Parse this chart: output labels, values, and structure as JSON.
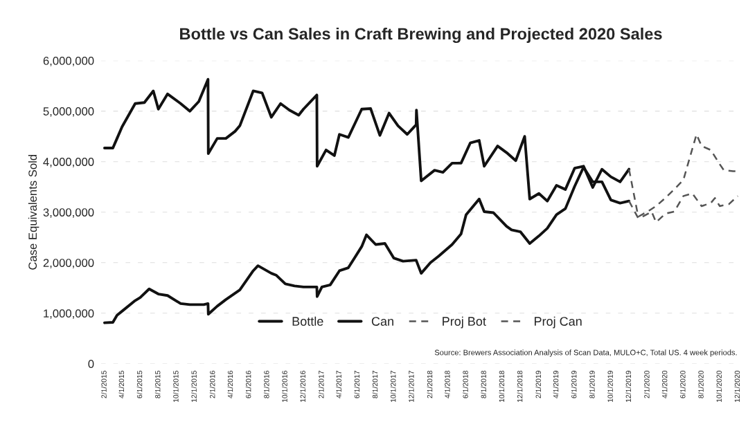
{
  "chart_data": {
    "type": "line",
    "title": "Bottle vs Can Sales in Craft Brewing and Projected 2020 Sales",
    "ylabel": "Case Equivalents Sold",
    "annotations": [
      "Source: Brewers Association Analysis of Scan Data, MULO+C, Total US. 4 week periods."
    ],
    "xlim": [
      "2015-01-20",
      "2020-12-10"
    ],
    "xticks": [
      {
        "value": "2015-02-01",
        "label": "2/1/2015"
      },
      {
        "value": "2015-04-01",
        "label": "4/1/2015"
      },
      {
        "value": "2015-06-01",
        "label": "6/1/2015"
      },
      {
        "value": "2015-08-01",
        "label": "8/1/2015"
      },
      {
        "value": "2015-10-01",
        "label": "10/1/2015"
      },
      {
        "value": "2015-12-01",
        "label": "12/1/2015"
      },
      {
        "value": "2016-02-01",
        "label": "2/1/2016"
      },
      {
        "value": "2016-04-01",
        "label": "4/1/2016"
      },
      {
        "value": "2016-06-01",
        "label": "6/1/2016"
      },
      {
        "value": "2016-08-01",
        "label": "8/1/2016"
      },
      {
        "value": "2016-10-01",
        "label": "10/1/2016"
      },
      {
        "value": "2016-12-01",
        "label": "12/1/2016"
      },
      {
        "value": "2017-02-01",
        "label": "2/1/2017"
      },
      {
        "value": "2017-04-01",
        "label": "4/1/2017"
      },
      {
        "value": "2017-06-01",
        "label": "6/1/2017"
      },
      {
        "value": "2017-08-01",
        "label": "8/1/2017"
      },
      {
        "value": "2017-10-01",
        "label": "10/1/2017"
      },
      {
        "value": "2017-12-01",
        "label": "12/1/2017"
      },
      {
        "value": "2018-02-01",
        "label": "2/1/2018"
      },
      {
        "value": "2018-04-01",
        "label": "4/1/2018"
      },
      {
        "value": "2018-06-01",
        "label": "6/1/2018"
      },
      {
        "value": "2018-08-01",
        "label": "8/1/2018"
      },
      {
        "value": "2018-10-01",
        "label": "10/1/2018"
      },
      {
        "value": "2018-12-01",
        "label": "12/1/2018"
      },
      {
        "value": "2019-02-01",
        "label": "2/1/2019"
      },
      {
        "value": "2019-04-01",
        "label": "4/1/2019"
      },
      {
        "value": "2019-06-01",
        "label": "6/1/2019"
      },
      {
        "value": "2019-08-01",
        "label": "8/1/2019"
      },
      {
        "value": "2019-10-01",
        "label": "10/1/2019"
      },
      {
        "value": "2019-12-01",
        "label": "12/1/2019"
      },
      {
        "value": "2020-02-01",
        "label": "2/1/2020"
      },
      {
        "value": "2020-04-01",
        "label": "4/1/2020"
      },
      {
        "value": "2020-06-01",
        "label": "6/1/2020"
      },
      {
        "value": "2020-08-01",
        "label": "8/1/2020"
      },
      {
        "value": "2020-10-01",
        "label": "10/1/2020"
      },
      {
        "value": "2020-12-01",
        "label": "12/1/2020"
      }
    ],
    "ylim": [
      0,
      6000000
    ],
    "yticks": [
      0,
      {
        "value": 1000000,
        "label": "1,000,000"
      },
      {
        "value": 2000000,
        "label": "2,000,000"
      },
      {
        "value": 3000000,
        "label": "3,000,000"
      },
      {
        "value": 4000000,
        "label": "4,000,000"
      },
      {
        "value": 5000000,
        "label": "5,000,000"
      },
      {
        "value": 6000000,
        "label": "6,000,000"
      }
    ],
    "grid": "y",
    "legend": "bottom",
    "marker": "none",
    "series": [
      {
        "name": "Bottle",
        "color": "#111111",
        "line_style": "solid",
        "x": [
          "2015-02-01",
          "2015-03-01",
          "2015-03-15",
          "2015-04-01",
          "2015-05-15",
          "2015-06-15",
          "2015-07-15",
          "2015-08-01",
          "2015-09-01",
          "2015-10-15",
          "2015-11-15",
          "2015-12-15",
          "2016-01-15",
          "2016-01-16",
          "2016-02-15",
          "2016-03-15",
          "2016-04-15",
          "2016-05-01",
          "2016-06-15",
          "2016-07-15",
          "2016-08-15",
          "2016-09-15",
          "2016-10-15",
          "2016-11-15",
          "2016-12-01",
          "2017-01-15",
          "2017-01-16",
          "2017-02-15",
          "2017-03-15",
          "2017-04-01",
          "2017-05-01",
          "2017-06-15",
          "2017-07-15",
          "2017-08-15",
          "2017-09-15",
          "2017-10-15",
          "2017-11-15",
          "2017-12-15",
          "2017-12-16",
          "2018-01-01",
          "2018-02-15",
          "2018-03-15",
          "2018-04-15",
          "2018-05-15",
          "2018-06-15",
          "2018-07-15",
          "2018-08-01",
          "2018-09-15",
          "2018-10-15",
          "2018-11-15",
          "2018-12-15",
          "2019-01-01",
          "2019-02-01",
          "2019-03-01",
          "2019-04-01",
          "2019-05-01",
          "2019-06-01",
          "2019-07-01",
          "2019-08-01",
          "2019-09-01",
          "2019-10-01",
          "2019-11-01",
          "2019-12-01"
        ],
        "values": [
          4270000,
          4270000,
          4460000,
          4690000,
          5150000,
          5170000,
          5400000,
          5040000,
          5340000,
          5150000,
          5000000,
          5190000,
          5630000,
          4160000,
          4460000,
          4460000,
          4600000,
          4710000,
          5400000,
          5360000,
          4880000,
          5150000,
          5020000,
          4920000,
          5040000,
          5320000,
          3910000,
          4230000,
          4120000,
          4540000,
          4480000,
          5040000,
          5050000,
          4520000,
          4960000,
          4710000,
          4540000,
          4730000,
          5020000,
          3620000,
          3830000,
          3790000,
          3970000,
          3970000,
          4370000,
          4420000,
          3910000,
          4310000,
          4180000,
          4020000,
          4500000,
          3260000,
          3370000,
          3220000,
          3530000,
          3450000,
          3870000,
          3910000,
          3490000,
          3850000,
          3700000,
          3600000,
          3850000
        ]
      },
      {
        "name": "Can",
        "color": "#111111",
        "line_style": "solid",
        "x": [
          "2015-02-01",
          "2015-03-01",
          "2015-03-15",
          "2015-04-01",
          "2015-05-15",
          "2015-06-01",
          "2015-07-01",
          "2015-08-01",
          "2015-09-01",
          "2015-10-15",
          "2015-11-15",
          "2016-01-01",
          "2016-01-15",
          "2016-01-16",
          "2016-02-15",
          "2016-03-15",
          "2016-05-01",
          "2016-06-15",
          "2016-07-01",
          "2016-08-15",
          "2016-09-01",
          "2016-10-01",
          "2016-11-01",
          "2016-12-01",
          "2017-01-15",
          "2017-01-16",
          "2017-02-01",
          "2017-03-01",
          "2017-04-01",
          "2017-05-01",
          "2017-06-15",
          "2017-07-01",
          "2017-08-01",
          "2017-09-01",
          "2017-10-01",
          "2017-11-01",
          "2017-12-15",
          "2018-01-01",
          "2018-02-01",
          "2018-03-01",
          "2018-04-15",
          "2018-05-15",
          "2018-06-01",
          "2018-07-15",
          "2018-08-01",
          "2018-09-01",
          "2018-10-15",
          "2018-11-01",
          "2018-12-01",
          "2019-01-01",
          "2019-02-01",
          "2019-03-01",
          "2019-04-01",
          "2019-05-01",
          "2019-06-01",
          "2019-07-01",
          "2019-08-01",
          "2019-09-01",
          "2019-10-01",
          "2019-11-01",
          "2019-12-01"
        ],
        "values": [
          810000,
          820000,
          960000,
          1040000,
          1250000,
          1310000,
          1480000,
          1380000,
          1350000,
          1190000,
          1170000,
          1170000,
          1190000,
          980000,
          1140000,
          1270000,
          1460000,
          1840000,
          1940000,
          1790000,
          1750000,
          1580000,
          1540000,
          1520000,
          1520000,
          1330000,
          1520000,
          1560000,
          1840000,
          1900000,
          2320000,
          2550000,
          2360000,
          2380000,
          2090000,
          2030000,
          2050000,
          1790000,
          2000000,
          2130000,
          2360000,
          2570000,
          2950000,
          3260000,
          3010000,
          2990000,
          2720000,
          2650000,
          2610000,
          2380000,
          2530000,
          2680000,
          2950000,
          3070000,
          3510000,
          3890000,
          3600000,
          3600000,
          3240000,
          3180000,
          3220000
        ]
      },
      {
        "name": "Proj Bot",
        "color": "#555555",
        "line_style": "dashed",
        "x": [
          "2019-12-01",
          "2020-01-01",
          "2020-02-01",
          "2020-03-01",
          "2020-04-01",
          "2020-05-01",
          "2020-06-01",
          "2020-06-15",
          "2020-07-15",
          "2020-08-01",
          "2020-09-01",
          "2020-10-01",
          "2020-10-15",
          "2020-11-15",
          "2020-12-01"
        ],
        "values": [
          3850000,
          2910000,
          3010000,
          3120000,
          3280000,
          3450000,
          3640000,
          3930000,
          4540000,
          4310000,
          4230000,
          3950000,
          3830000,
          3810000,
          3810000
        ]
      },
      {
        "name": "Proj Can",
        "color": "#555555",
        "line_style": "dashed",
        "x": [
          "2019-12-01",
          "2020-01-01",
          "2020-01-15",
          "2020-02-15",
          "2020-03-01",
          "2020-04-01",
          "2020-05-01",
          "2020-06-01",
          "2020-07-01",
          "2020-08-01",
          "2020-09-01",
          "2020-09-15",
          "2020-10-01",
          "2020-11-01",
          "2020-12-01"
        ],
        "values": [
          3220000,
          2880000,
          2910000,
          3010000,
          2800000,
          2970000,
          3010000,
          3320000,
          3370000,
          3120000,
          3180000,
          3280000,
          3120000,
          3160000,
          3320000
        ]
      }
    ]
  }
}
